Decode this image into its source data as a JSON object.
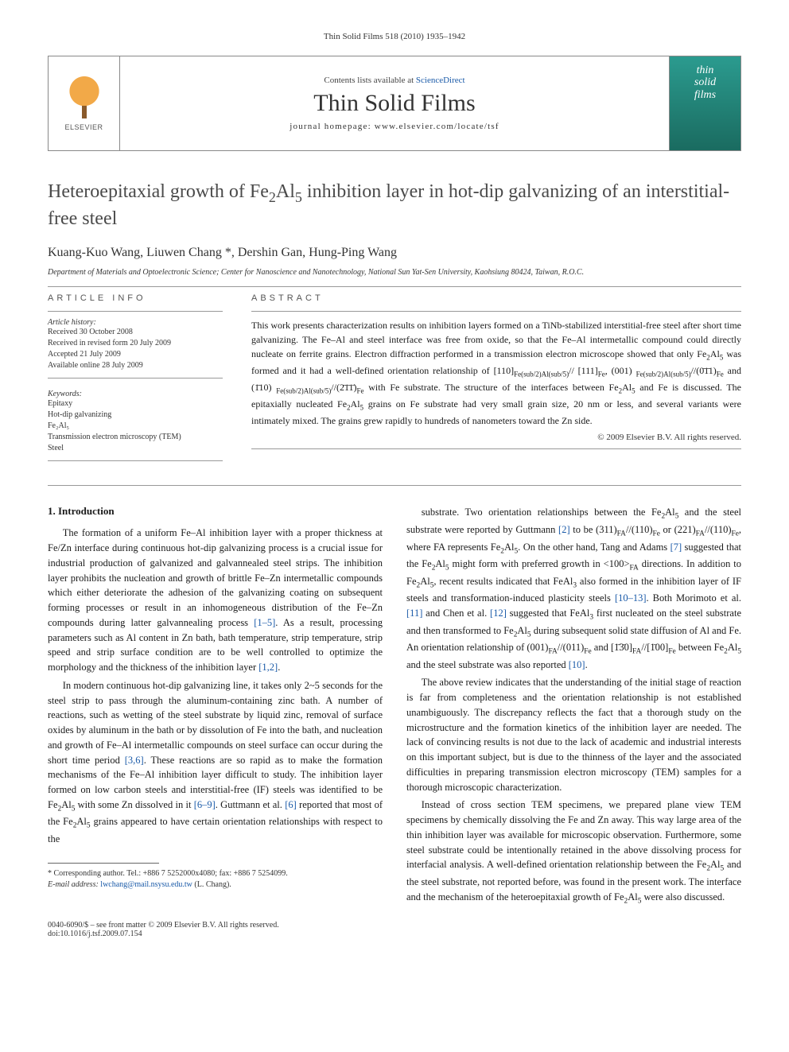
{
  "journal_header": "Thin Solid Films 518 (2010) 1935–1942",
  "banner": {
    "contents_prefix": "Contents lists available at ",
    "contents_link": "ScienceDirect",
    "journal_name": "Thin Solid Films",
    "homepage_prefix": "journal homepage: ",
    "homepage_url": "www.elsevier.com/locate/tsf",
    "elsevier_label": "ELSEVIER",
    "cover_text_1": "thin",
    "cover_text_2": "solid",
    "cover_text_3": "films"
  },
  "title_html": "Heteroepitaxial growth of Fe<sub>2</sub>Al<sub>5</sub> inhibition layer in hot-dip galvanizing of an interstitial-free steel",
  "authors": "Kuang-Kuo Wang, Liuwen Chang *, Dershin Gan, Hung-Ping Wang",
  "affiliation": "Department of Materials and Optoelectronic Science; Center for Nanoscience and Nanotechnology, National Sun Yat-Sen University, Kaohsiung 80424, Taiwan, R.O.C.",
  "info_label": "article info",
  "abstract_label": "abstract",
  "history_label": "Article history:",
  "history": [
    "Received 30 October 2008",
    "Received in revised form 20 July 2009",
    "Accepted 21 July 2009",
    "Available online 28 July 2009"
  ],
  "keywords_label": "Keywords:",
  "keywords": [
    "Epitaxy",
    "Hot-dip galvanizing",
    "Fe₂Al₅",
    "Transmission electron microscopy (TEM)",
    "Steel"
  ],
  "abstract_html": "This work presents characterization results on inhibition layers formed on a TiNb-stabilized interstitial-free steel after short time galvanizing. The Fe–Al and steel interface was free from oxide, so that the Fe–Al intermetallic compound could directly nucleate on ferrite grains. Electron diffraction performed in a transmission electron microscope showed that only Fe<sub>2</sub>Al<sub>5</sub> was formed and it had a well-defined orientation relationship of [110]<sub>Fe(sub/2)Al(sub/5)</sub>// [111]<sub>Fe</sub>, (001) <sub>Fe(sub/2)Al(sub/5)</sub>//(0̄1̄1)<sub>Fe</sub> and (1̄10) <sub>Fe(sub/2)Al(sub/5)</sub>//(2̄1̄1̄)<sub>Fe</sub> with Fe substrate. The structure of the interfaces between Fe<sub>2</sub>Al<sub>5</sub> and Fe is discussed. The epitaxially nucleated Fe<sub>2</sub>Al<sub>5</sub> grains on Fe substrate had very small grain size, 20 nm or less, and several variants were intimately mixed. The grains grew rapidly to hundreds of nanometers toward the Zn side.",
  "copyright": "© 2009 Elsevier B.V. All rights reserved.",
  "section_1_heading": "1. Introduction",
  "para1_html": "The formation of a uniform Fe–Al inhibition layer with a proper thickness at Fe/Zn interface during continuous hot-dip galvanizing process is a crucial issue for industrial production of galvanized and galvannealed steel strips. The inhibition layer prohibits the nucleation and growth of brittle Fe–Zn intermetallic compounds which either deteriorate the adhesion of the galvanizing coating on subsequent forming processes or result in an inhomogeneous distribution of the Fe–Zn compounds during latter galvannealing process <span class=\"ref-link\">[1–5]</span>. As a result, processing parameters such as Al content in Zn bath, bath temperature, strip temperature, strip speed and strip surface condition are to be well controlled to optimize the morphology and the thickness of the inhibition layer <span class=\"ref-link\">[1,2]</span>.",
  "para2_html": "In modern continuous hot-dip galvanizing line, it takes only 2~5 seconds for the steel strip to pass through the aluminum-containing zinc bath. A number of reactions, such as wetting of the steel substrate by liquid zinc, removal of surface oxides by aluminum in the bath or by dissolution of Fe into the bath, and nucleation and growth of Fe–Al intermetallic compounds on steel surface can occur during the short time period <span class=\"ref-link\">[3,6]</span>. These reactions are so rapid as to make the formation mechanisms of the Fe–Al inhibition layer difficult to study. The inhibition layer formed on low carbon steels and interstitial-free (IF) steels was identified to be Fe<sub>2</sub>Al<sub>5</sub> with some Zn dissolved in it <span class=\"ref-link\">[6–9]</span>. Guttmann et al. <span class=\"ref-link\">[6]</span> reported that most of the Fe<sub>2</sub>Al<sub>5</sub> grains appeared to have certain orientation relationships with respect to the",
  "para3_html": "substrate. Two orientation relationships between the Fe<sub>2</sub>Al<sub>5</sub> and the steel substrate were reported by Guttmann <span class=\"ref-link\">[2]</span> to be (311)<sub>FA</sub>//(110)<sub>Fe</sub> or (221)<sub>FA</sub>//(110)<sub>Fe</sub>, where FA represents Fe<sub>2</sub>Al<sub>5</sub>. On the other hand, Tang and Adams <span class=\"ref-link\">[7]</span> suggested that the Fe<sub>2</sub>Al<sub>5</sub> might form with preferred growth in &lt;100&gt;<sub>FA</sub> directions. In addition to Fe<sub>2</sub>Al<sub>5</sub>, recent results indicated that FeAl<sub>3</sub> also formed in the inhibition layer of IF steels and transformation-induced plasticity steels <span class=\"ref-link\">[10–13]</span>. Both Morimoto et al. <span class=\"ref-link\">[11]</span> and Chen et al. <span class=\"ref-link\">[12]</span> suggested that FeAl<sub>3</sub> first nucleated on the steel substrate and then transformed to Fe<sub>2</sub>Al<sub>5</sub> during subsequent solid state diffusion of Al and Fe. An orientation relationship of (001)<sub>FA</sub>//(011)<sub>Fe</sub> and [1̄3̄0]<sub>FA</sub>//[1̄00]<sub>Fe</sub> between Fe<sub>2</sub>Al<sub>5</sub> and the steel substrate was also reported <span class=\"ref-link\">[10]</span>.",
  "para4_html": "The above review indicates that the understanding of the initial stage of reaction is far from completeness and the orientation relationship is not established unambiguously. The discrepancy reflects the fact that a thorough study on the microstructure and the formation kinetics of the inhibition layer are needed. The lack of convincing results is not due to the lack of academic and industrial interests on this important subject, but is due to the thinness of the layer and the associated difficulties in preparing transmission electron microscopy (TEM) samples for a thorough microscopic characterization.",
  "para5_html": "Instead of cross section TEM specimens, we prepared plane view TEM specimens by chemically dissolving the Fe and Zn away. This way large area of the thin inhibition layer was available for microscopic observation. Furthermore, some steel substrate could be intentionally retained in the above dissolving process for interfacial analysis. A well-defined orientation relationship between the Fe<sub>2</sub>Al<sub>5</sub> and the steel substrate, not reported before, was found in the present work. The interface and the mechanism of the heteroepitaxial growth of Fe<sub>2</sub>Al<sub>5</sub> were also discussed.",
  "corresponding": {
    "line1": "* Corresponding author. Tel.: +886 7 5252000x4080; fax: +886 7 5254099.",
    "line2_prefix": "E-mail address: ",
    "email": "lwchang@mail.nsysu.edu.tw",
    "line2_suffix": " (L. Chang)."
  },
  "footer": {
    "left_line1": "0040-6090/$ – see front matter © 2009 Elsevier B.V. All rights reserved.",
    "left_line2": "doi:10.1016/j.tsf.2009.07.154"
  }
}
